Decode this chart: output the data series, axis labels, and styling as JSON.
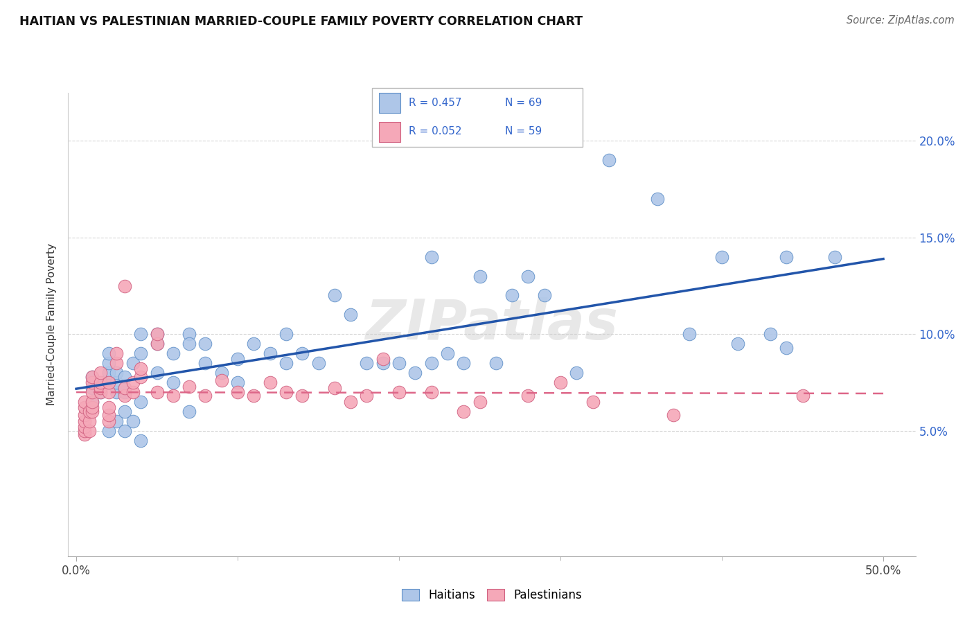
{
  "title": "HAITIAN VS PALESTINIAN MARRIED-COUPLE FAMILY POVERTY CORRELATION CHART",
  "source": "Source: ZipAtlas.com",
  "xlabel_ticks": [
    "0.0%",
    "50.0%"
  ],
  "xlabel_vals": [
    0.0,
    0.5
  ],
  "xlabel_minor": [
    0.1,
    0.2,
    0.3,
    0.4
  ],
  "ylabel_ticks": [
    "5.0%",
    "10.0%",
    "15.0%",
    "20.0%"
  ],
  "ylabel_vals": [
    0.05,
    0.1,
    0.15,
    0.2
  ],
  "xlim": [
    -0.005,
    0.52
  ],
  "ylim": [
    -0.015,
    0.225
  ],
  "ylabel": "Married-Couple Family Poverty",
  "haitian_R": "R = 0.457",
  "haitian_N": "N = 69",
  "palestinian_R": "R = 0.052",
  "palestinian_N": "N = 59",
  "haitian_color": "#aec6e8",
  "haitian_edge": "#6090c8",
  "palestinian_color": "#f5a8b8",
  "palestinian_edge": "#d06080",
  "haitian_line_color": "#2255aa",
  "palestinian_line_color": "#dd6688",
  "watermark": "ZIPatlas",
  "haitian_x": [
    0.01,
    0.01,
    0.01,
    0.015,
    0.015,
    0.02,
    0.02,
    0.02,
    0.02,
    0.02,
    0.025,
    0.025,
    0.025,
    0.025,
    0.03,
    0.03,
    0.03,
    0.03,
    0.03,
    0.035,
    0.035,
    0.04,
    0.04,
    0.04,
    0.04,
    0.05,
    0.05,
    0.05,
    0.06,
    0.06,
    0.07,
    0.07,
    0.07,
    0.08,
    0.08,
    0.09,
    0.1,
    0.1,
    0.11,
    0.12,
    0.13,
    0.13,
    0.14,
    0.15,
    0.16,
    0.17,
    0.18,
    0.19,
    0.2,
    0.21,
    0.22,
    0.22,
    0.23,
    0.24,
    0.25,
    0.26,
    0.27,
    0.28,
    0.29,
    0.31,
    0.33,
    0.36,
    0.38,
    0.4,
    0.41,
    0.43,
    0.44,
    0.44,
    0.47
  ],
  "haitian_y": [
    0.065,
    0.072,
    0.078,
    0.07,
    0.075,
    0.075,
    0.08,
    0.085,
    0.09,
    0.05,
    0.07,
    0.075,
    0.08,
    0.055,
    0.07,
    0.072,
    0.078,
    0.06,
    0.05,
    0.085,
    0.055,
    0.09,
    0.1,
    0.065,
    0.045,
    0.095,
    0.1,
    0.08,
    0.09,
    0.075,
    0.1,
    0.095,
    0.06,
    0.095,
    0.085,
    0.08,
    0.087,
    0.075,
    0.095,
    0.09,
    0.085,
    0.1,
    0.09,
    0.085,
    0.12,
    0.11,
    0.085,
    0.085,
    0.085,
    0.08,
    0.085,
    0.14,
    0.09,
    0.085,
    0.13,
    0.085,
    0.12,
    0.13,
    0.12,
    0.08,
    0.19,
    0.17,
    0.1,
    0.14,
    0.095,
    0.1,
    0.093,
    0.14,
    0.14
  ],
  "palestinian_x": [
    0.005,
    0.005,
    0.005,
    0.005,
    0.005,
    0.005,
    0.005,
    0.008,
    0.008,
    0.008,
    0.01,
    0.01,
    0.01,
    0.01,
    0.01,
    0.01,
    0.015,
    0.015,
    0.015,
    0.015,
    0.02,
    0.02,
    0.02,
    0.02,
    0.02,
    0.025,
    0.025,
    0.03,
    0.03,
    0.03,
    0.035,
    0.035,
    0.04,
    0.04,
    0.05,
    0.05,
    0.05,
    0.06,
    0.07,
    0.08,
    0.09,
    0.1,
    0.11,
    0.12,
    0.13,
    0.14,
    0.16,
    0.17,
    0.18,
    0.19,
    0.2,
    0.22,
    0.24,
    0.25,
    0.28,
    0.3,
    0.32,
    0.37,
    0.45
  ],
  "palestinian_y": [
    0.048,
    0.05,
    0.052,
    0.055,
    0.058,
    0.062,
    0.065,
    0.05,
    0.055,
    0.06,
    0.06,
    0.062,
    0.065,
    0.07,
    0.075,
    0.078,
    0.07,
    0.072,
    0.075,
    0.08,
    0.055,
    0.058,
    0.062,
    0.07,
    0.075,
    0.085,
    0.09,
    0.068,
    0.072,
    0.125,
    0.07,
    0.075,
    0.078,
    0.082,
    0.07,
    0.095,
    0.1,
    0.068,
    0.073,
    0.068,
    0.076,
    0.07,
    0.068,
    0.075,
    0.07,
    0.068,
    0.072,
    0.065,
    0.068,
    0.087,
    0.07,
    0.07,
    0.06,
    0.065,
    0.068,
    0.075,
    0.065,
    0.058,
    0.068
  ]
}
